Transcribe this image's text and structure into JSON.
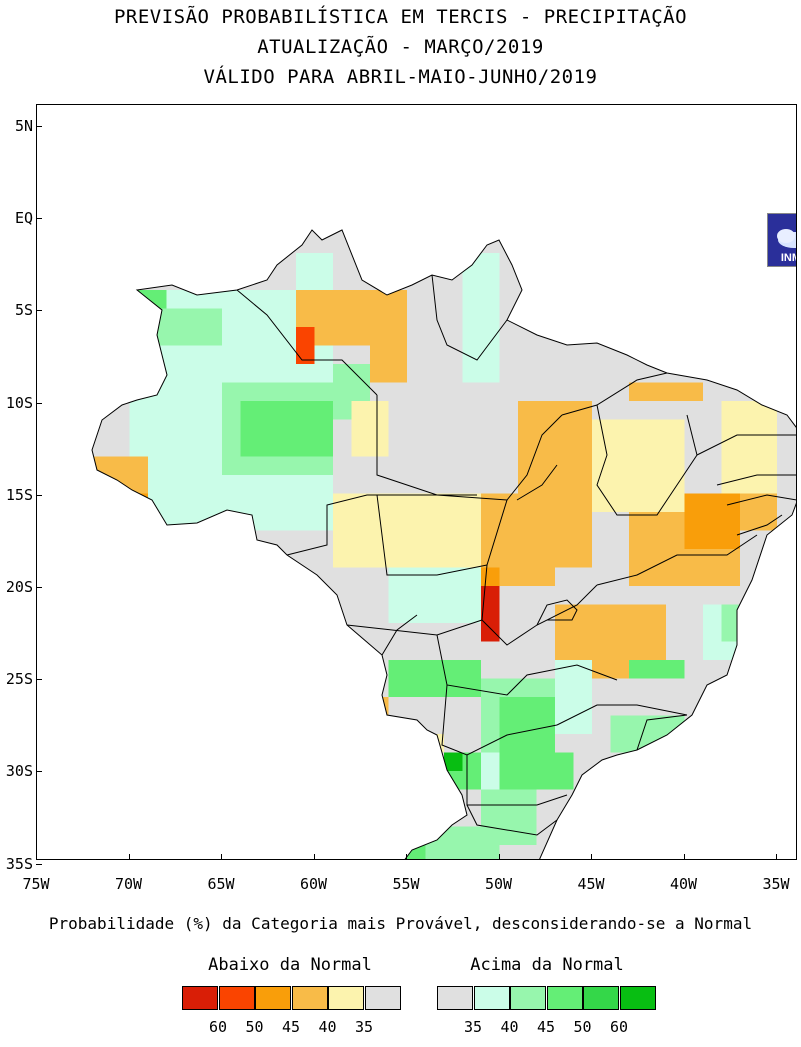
{
  "titles": {
    "line1": "PREVISÃO PROBABILÍSTICA EM TERCIS - PRECIPITAÇÃO",
    "line2": "ATUALIZAÇÃO - MARÇO/2019",
    "line3": "VÁLIDO PARA ABRIL-MAIO-JUNHO/2019"
  },
  "axes": {
    "y_labels": [
      "5N",
      "EQ",
      "5S",
      "10S",
      "15S",
      "20S",
      "25S",
      "30S",
      "35S"
    ],
    "x_labels": [
      "75W",
      "70W",
      "65W",
      "60W",
      "55W",
      "50W",
      "45W",
      "40W",
      "35W"
    ]
  },
  "caption": "Probabilidade (%) da Categoria mais Provável, desconsiderando-se a Normal",
  "legend": {
    "below_title": "Abaixo da Normal",
    "above_title": "Acima da Normal",
    "below_colors": [
      "#d91e06",
      "#fa4400",
      "#f99e0a",
      "#f8bb48",
      "#fcf3ae",
      "#e0e0e0"
    ],
    "below_labels": [
      "60",
      "50",
      "45",
      "40",
      "35"
    ],
    "above_colors": [
      "#e0e0e0",
      "#cbfde8",
      "#97f6ad",
      "#64ee76",
      "#34d749",
      "#08be12"
    ],
    "above_labels": [
      "35",
      "40",
      "45",
      "50",
      "60"
    ]
  },
  "logo_text": "INMET",
  "colors": {
    "neutral": "#e0e0e0",
    "below_35": "#fcf3ae",
    "below_40": "#f8bb48",
    "below_45": "#f99e0a",
    "below_50": "#fa4400",
    "below_60": "#d91e06",
    "above_40": "#cbfde8",
    "above_45": "#97f6ad",
    "above_50": "#64ee76",
    "above_60": "#08be12"
  }
}
